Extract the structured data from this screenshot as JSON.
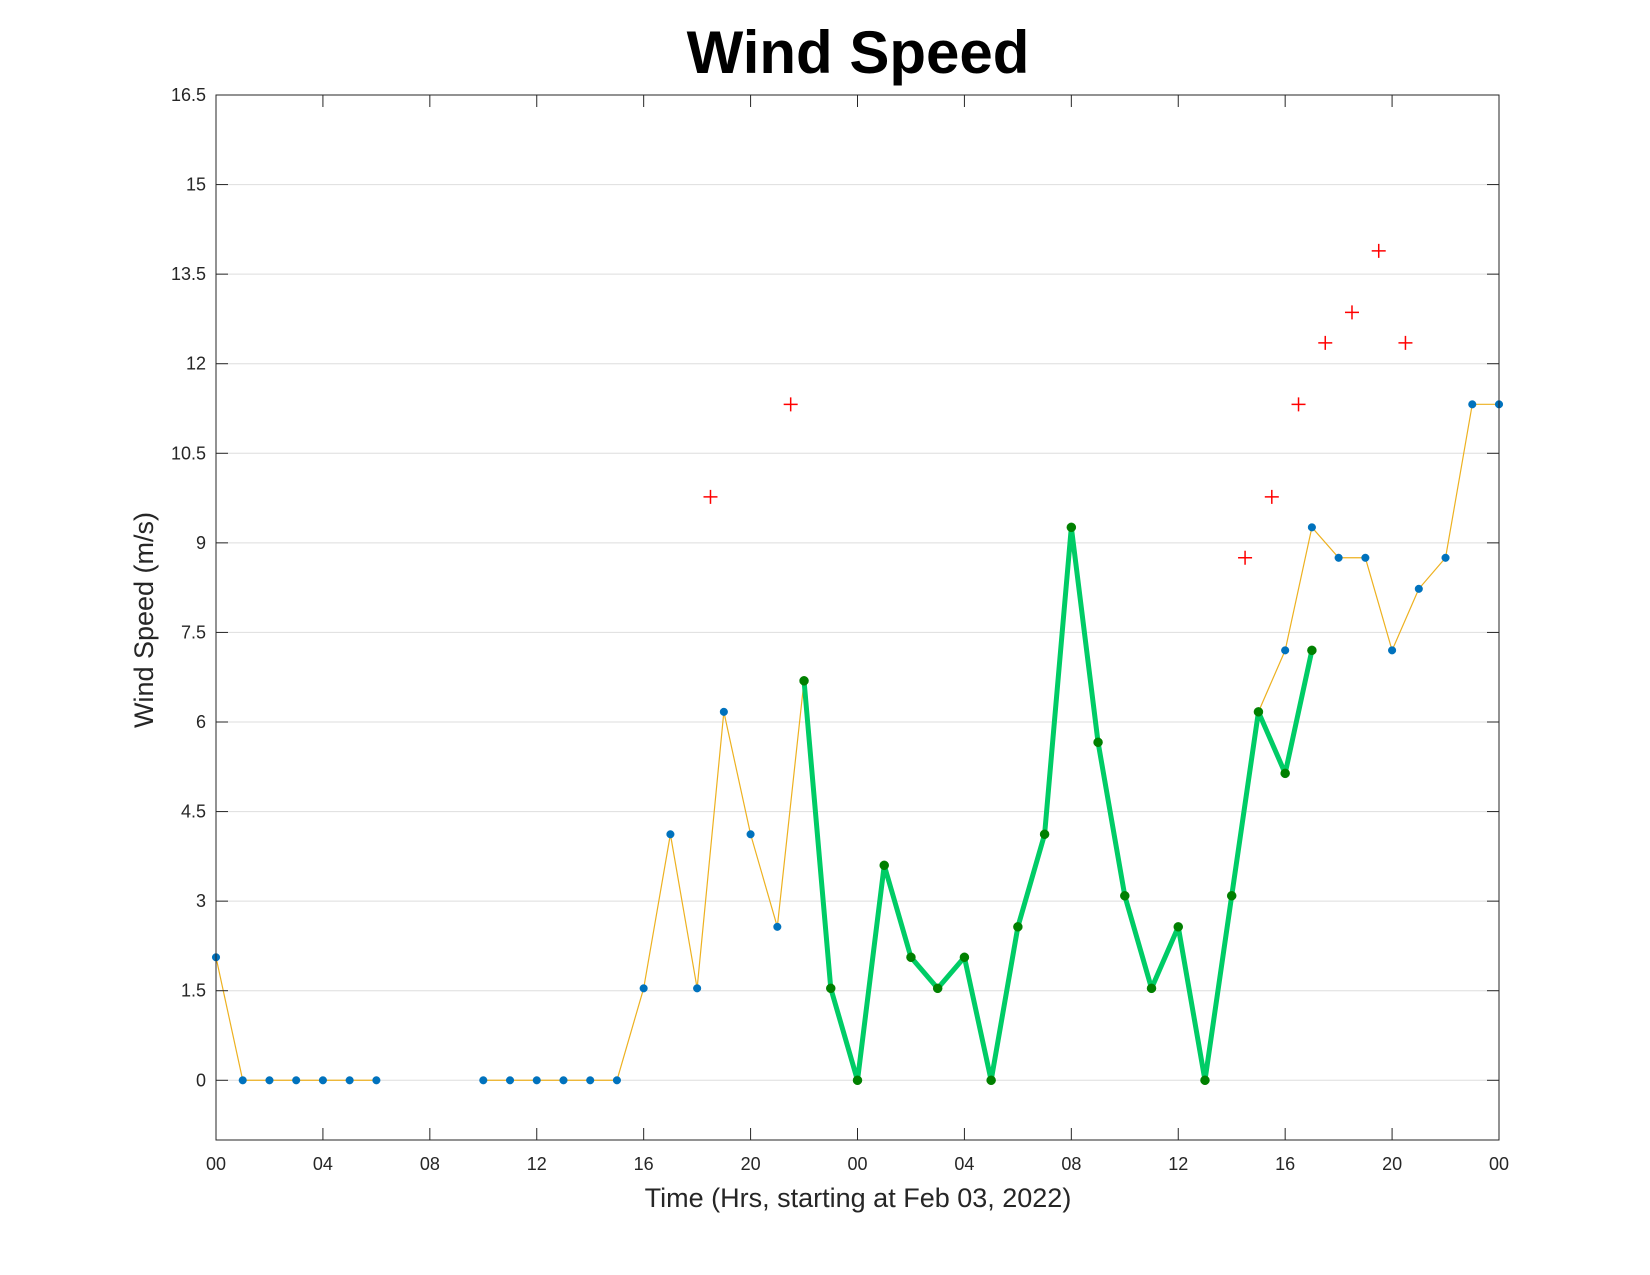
{
  "chart_data": {
    "type": "line",
    "title": "Wind Speed",
    "xlabel": "Time (Hrs, starting at Feb 03, 2022)",
    "ylabel": "Wind Speed (m/s)",
    "xlim": [
      0,
      48
    ],
    "ylim": [
      -1,
      16.5
    ],
    "x_tick_values": [
      0,
      4,
      8,
      12,
      16,
      20,
      24,
      28,
      32,
      36,
      40,
      44,
      48
    ],
    "x_tick_labels": [
      "00",
      "04",
      "08",
      "12",
      "16",
      "20",
      "00",
      "04",
      "08",
      "12",
      "16",
      "20",
      "00"
    ],
    "y_tick_values": [
      0,
      1.5,
      3,
      4.5,
      6,
      7.5,
      9,
      10.5,
      12,
      13.5,
      15,
      16.5
    ],
    "y_tick_labels": [
      "0",
      "1.5",
      "3",
      "4.5",
      "6",
      "7.5",
      "9",
      "10.5",
      "12",
      "13.5",
      "15",
      "16.5"
    ],
    "grid": true,
    "series": [
      {
        "style": "thin-line-with-points",
        "color": "#EDB120",
        "marker_color": "#0072BD",
        "segments": [
          {
            "x": [
              0,
              1,
              2,
              3,
              4,
              5,
              6
            ],
            "y": [
              2.06,
              0,
              0,
              0,
              0,
              0,
              0
            ]
          },
          {
            "x": [
              10,
              11,
              12,
              13,
              14,
              15,
              16,
              17,
              18,
              19,
              20,
              21,
              22
            ],
            "y": [
              0,
              0,
              0,
              0,
              0,
              0,
              1.54,
              4.12,
              1.54,
              6.17,
              4.12,
              2.57,
              6.69
            ]
          },
          {
            "x": [
              39,
              40,
              41,
              42,
              43,
              44,
              45,
              46,
              47,
              48
            ],
            "y": [
              6.17,
              7.2,
              9.26,
              8.75,
              8.75,
              7.2,
              8.23,
              8.75,
              11.32,
              11.32
            ]
          }
        ]
      },
      {
        "style": "thick-line-with-points",
        "color": "#00CC66",
        "marker_color": "#008000",
        "segments": [
          {
            "x": [
              22,
              23,
              24,
              25,
              26,
              27,
              28,
              29,
              30,
              31,
              32,
              33,
              34,
              35,
              36,
              37,
              38,
              39,
              40,
              41
            ],
            "y": [
              6.69,
              1.54,
              0,
              3.6,
              2.06,
              1.54,
              2.06,
              0,
              2.57,
              4.12,
              9.26,
              5.66,
              3.09,
              1.54,
              2.57,
              0,
              3.09,
              6.17,
              5.14,
              7.2
            ]
          }
        ]
      },
      {
        "style": "markers-plus",
        "color": "#FF0000",
        "x": [
          18.5,
          21.5,
          38.5,
          39.5,
          40.5,
          41.5,
          42.5,
          43.5,
          44.5
        ],
        "y": [
          9.77,
          11.32,
          8.75,
          9.77,
          11.32,
          12.35,
          12.86,
          13.89,
          12.35
        ]
      }
    ]
  }
}
